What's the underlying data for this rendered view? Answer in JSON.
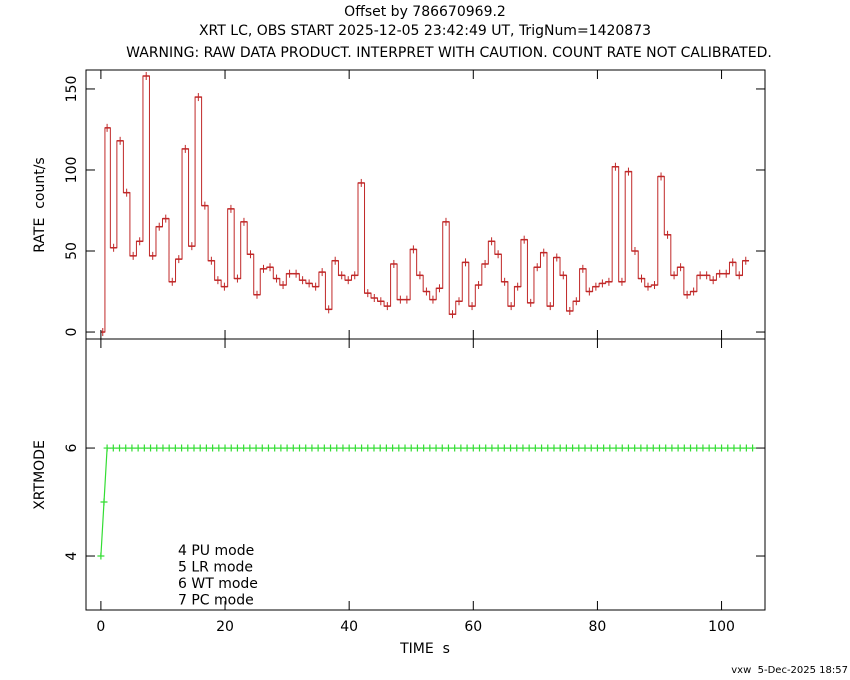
{
  "footer": "vxw  5-Dec-2025 18:57",
  "chart_data": [
    {
      "type": "step",
      "title": "Offset by 786670969.2",
      "subtitle": "XRT LC, OBS START 2025-12-05 23:42:49 UT, TrigNum=1420873",
      "note": "WARNING: RAW DATA PRODUCT. INTERPRET WITH CAUTION. COUNT RATE NOT CALIBRATED.",
      "ylabel": "RATE  count/s",
      "color": "#c02828",
      "xlim": [
        -2.4,
        107
      ],
      "ylim": [
        -4.3,
        161.7
      ],
      "yticks": [
        0,
        50,
        100,
        150
      ],
      "x": [
        0.3,
        1,
        2.05,
        3.1,
        4.15,
        5.2,
        6.25,
        7.3,
        8.35,
        9.4,
        10.45,
        11.5,
        12.55,
        13.6,
        14.65,
        15.7,
        16.75,
        17.8,
        18.85,
        19.9,
        20.95,
        22,
        23.05,
        24.1,
        25.15,
        26.2,
        27.25,
        28.3,
        29.35,
        30.4,
        31.45,
        32.5,
        33.55,
        34.6,
        35.65,
        36.7,
        37.75,
        38.8,
        39.85,
        40.9,
        41.95,
        43,
        44.05,
        45.1,
        46.15,
        47.2,
        48.25,
        49.3,
        50.35,
        51.4,
        52.45,
        53.5,
        54.55,
        55.6,
        56.65,
        57.7,
        58.75,
        59.8,
        60.85,
        61.9,
        62.95,
        64,
        65.05,
        66.1,
        67.15,
        68.2,
        69.25,
        70.3,
        71.35,
        72.4,
        73.45,
        74.5,
        75.55,
        76.6,
        77.65,
        78.7,
        79.75,
        80.8,
        81.85,
        82.9,
        83.95,
        85,
        86.05,
        87.1,
        88.15,
        89.2,
        90.25,
        91.3,
        92.35,
        93.4,
        94.45,
        95.5,
        96.55,
        97.6,
        98.65,
        99.7,
        100.75,
        101.8,
        102.85,
        103.9
      ],
      "values": [
        0,
        126,
        52,
        118,
        86,
        47,
        56,
        158,
        47,
        65,
        70,
        31,
        45,
        113,
        53,
        145,
        78,
        44,
        32,
        28,
        76,
        33,
        68,
        48,
        23,
        39,
        40,
        33,
        29,
        36,
        36,
        32,
        30,
        28,
        37,
        14,
        44,
        35,
        32,
        35,
        92,
        24,
        21,
        19,
        16,
        42,
        20,
        20,
        51,
        35,
        25,
        20,
        27,
        68,
        11,
        19,
        43,
        16,
        29,
        42,
        56,
        48,
        31,
        16,
        28,
        57,
        18,
        40,
        49,
        16,
        46,
        35,
        13,
        19,
        39,
        25,
        28,
        30,
        31,
        102,
        31,
        99,
        50,
        33,
        28,
        29,
        96,
        60,
        35,
        40,
        23,
        25,
        35,
        35,
        32,
        36,
        36,
        43,
        35,
        44
      ]
    },
    {
      "type": "line",
      "xlabel": "TIME  s",
      "ylabel": "XRTMODE",
      "color": "#33dd33",
      "notes": [
        "4 PU mode",
        "5 LR mode",
        "6 WT mode",
        "7 PC mode"
      ],
      "xlim": [
        -2.4,
        107
      ],
      "xticks": [
        0,
        20,
        40,
        60,
        80,
        100
      ],
      "ylim": [
        3,
        8.02
      ],
      "yticks": [
        4,
        6
      ],
      "x": [
        0,
        0.5,
        1,
        2,
        3,
        4,
        5,
        6,
        7,
        8,
        9,
        10,
        11,
        12,
        13,
        14,
        15,
        16,
        17,
        18,
        19,
        20,
        21,
        22,
        23,
        24,
        25,
        26,
        27,
        28,
        29,
        30,
        31,
        32,
        33,
        34,
        35,
        36,
        37,
        38,
        39,
        40,
        41,
        42,
        43,
        44,
        45,
        46,
        47,
        48,
        49,
        50,
        51,
        52,
        53,
        54,
        55,
        56,
        57,
        58,
        59,
        60,
        61,
        62,
        63,
        64,
        65,
        66,
        67,
        68,
        69,
        70,
        71,
        72,
        73,
        74,
        75,
        76,
        77,
        78,
        79,
        80,
        81,
        82,
        83,
        84,
        85,
        86,
        87,
        88,
        89,
        90,
        91,
        92,
        93,
        94,
        95,
        96,
        97,
        98,
        99,
        100,
        101,
        102,
        103,
        104,
        105
      ],
      "values": [
        4,
        5,
        6,
        6,
        6,
        6,
        6,
        6,
        6,
        6,
        6,
        6,
        6,
        6,
        6,
        6,
        6,
        6,
        6,
        6,
        6,
        6,
        6,
        6,
        6,
        6,
        6,
        6,
        6,
        6,
        6,
        6,
        6,
        6,
        6,
        6,
        6,
        6,
        6,
        6,
        6,
        6,
        6,
        6,
        6,
        6,
        6,
        6,
        6,
        6,
        6,
        6,
        6,
        6,
        6,
        6,
        6,
        6,
        6,
        6,
        6,
        6,
        6,
        6,
        6,
        6,
        6,
        6,
        6,
        6,
        6,
        6,
        6,
        6,
        6,
        6,
        6,
        6,
        6,
        6,
        6,
        6,
        6,
        6,
        6,
        6,
        6,
        6,
        6,
        6,
        6,
        6,
        6,
        6,
        6,
        6,
        6,
        6,
        6,
        6,
        6,
        6,
        6,
        6,
        6,
        6,
        6
      ]
    }
  ]
}
